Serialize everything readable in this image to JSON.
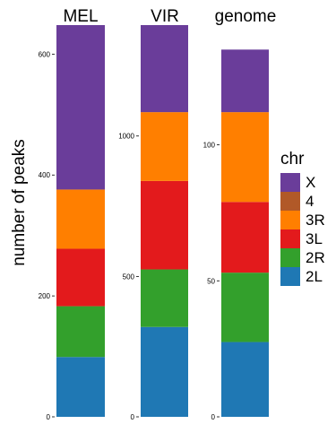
{
  "chart_data": {
    "type": "bar",
    "stacked": true,
    "ylabel": "number of peaks",
    "panels": [
      {
        "title": "MEL",
        "ylim": [
          0,
          648
        ],
        "yticks": [
          0,
          200,
          400,
          600
        ],
        "segments": [
          {
            "chr": "2L",
            "value": 99
          },
          {
            "chr": "2R",
            "value": 84
          },
          {
            "chr": "3L",
            "value": 95
          },
          {
            "chr": "3R",
            "value": 98
          },
          {
            "chr": "4",
            "value": 0
          },
          {
            "chr": "X",
            "value": 272
          }
        ]
      },
      {
        "title": "VIR",
        "ylim": [
          0,
          1395
        ],
        "yticks": [
          0,
          500,
          1000
        ],
        "segments": [
          {
            "chr": "2L",
            "value": 320
          },
          {
            "chr": "2R",
            "value": 205
          },
          {
            "chr": "3L",
            "value": 315
          },
          {
            "chr": "3R",
            "value": 245
          },
          {
            "chr": "4",
            "value": 0
          },
          {
            "chr": "X",
            "value": 310
          }
        ]
      },
      {
        "title": "genome",
        "ylim": [
          0,
          144
        ],
        "yticks": [
          0,
          50,
          100
        ],
        "segments": [
          {
            "chr": "2L",
            "value": 27.5
          },
          {
            "chr": "2R",
            "value": 25.5
          },
          {
            "chr": "3L",
            "value": 26
          },
          {
            "chr": "3R",
            "value": 33
          },
          {
            "chr": "4",
            "value": 0
          },
          {
            "chr": "X",
            "value": 23
          }
        ]
      }
    ],
    "legend": {
      "title": "chr",
      "position": "right",
      "items": [
        {
          "label": "X",
          "color": "#6a3d9a"
        },
        {
          "label": "4",
          "color": "#b15928"
        },
        {
          "label": "3R",
          "color": "#ff7f00"
        },
        {
          "label": "3L",
          "color": "#e31a1c"
        },
        {
          "label": "2R",
          "color": "#33a02c"
        },
        {
          "label": "2L",
          "color": "#1f78b4"
        }
      ]
    },
    "grid": false
  }
}
